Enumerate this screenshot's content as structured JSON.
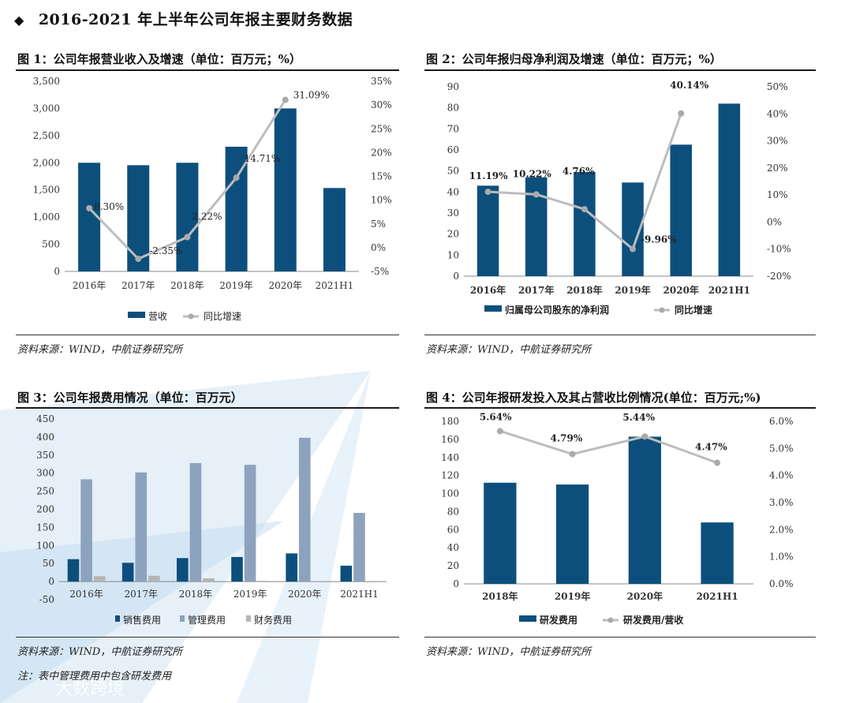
{
  "page": {
    "heading": "2016-2021 年上半年公司年报主要财务数据",
    "footnote": "注：表中管理费用中包含研发费用",
    "watermark_text": "大数跨境"
  },
  "colors": {
    "bar_dark": "#0d4f7c",
    "bar_mid": "#8da2bd",
    "bar_light": "#b5b5b5",
    "line_gray": "#bdbdbd",
    "marker_gray": "#aaaaaa",
    "watermark": "#cfe3f3"
  },
  "charts": [
    {
      "fig_title": "图 1：公司年报营业收入及增速（单位：百万元；%）",
      "source": "资料来源：WIND，中航证券研究所"
    },
    {
      "fig_title": "图 2：公司年报归母净利润及增速（单位：百万元；%）",
      "source": "资料来源：WIND，中航证券研究所"
    },
    {
      "fig_title": "图 3：公司年报费用情况（单位：百万元）",
      "source": "资料来源：WIND，中航证券研究所"
    },
    {
      "fig_title": "图 4：公司年报研发投入及其占营收比例情况(单位：百万元;%)",
      "source": "资料来源：WIND，中航证券研究所"
    }
  ],
  "chart_data": [
    {
      "type": "bar",
      "categories": [
        "2016年",
        "2017年",
        "2018年",
        "2019年",
        "2020年",
        "2021H1"
      ],
      "series": [
        {
          "name": "营收",
          "type": "bar",
          "axis": "left",
          "values": [
            2000,
            1955,
            2000,
            2295,
            3000,
            1535
          ]
        },
        {
          "name": "同比增速",
          "type": "line",
          "axis": "right",
          "values": [
            8.3,
            -2.35,
            2.22,
            14.71,
            31.09,
            null
          ],
          "labels": [
            "8.30%",
            "-2.35%",
            "2.22%",
            "14.71%",
            "31.09%",
            ""
          ]
        }
      ],
      "yleft": {
        "min": 0,
        "max": 3500,
        "ticks": [
          "0",
          "500",
          "1,000",
          "1,500",
          "2,000",
          "2,500",
          "3,000",
          "3,500"
        ]
      },
      "yright": {
        "min": -5,
        "max": 35,
        "ticks": [
          "-5%",
          "0%",
          "5%",
          "10%",
          "15%",
          "20%",
          "25%",
          "30%",
          "35%"
        ]
      },
      "legend_position": "bottom"
    },
    {
      "type": "bar",
      "categories": [
        "2016年",
        "2017年",
        "2018年",
        "2019年",
        "2020年",
        "2021H1"
      ],
      "series": [
        {
          "name": "归属母公司股东的净利润",
          "type": "bar",
          "axis": "left",
          "values": [
            43,
            47,
            49.5,
            44.5,
            62.5,
            82
          ]
        },
        {
          "name": "同比增速",
          "type": "line",
          "axis": "right",
          "values": [
            11.19,
            10.22,
            4.76,
            -9.96,
            40.14,
            null
          ],
          "labels": [
            "11.19%",
            "10.22%",
            "4.76%",
            "-9.96%",
            "40.14%",
            ""
          ]
        }
      ],
      "yleft": {
        "min": 0,
        "max": 90,
        "ticks": [
          "0",
          "10",
          "20",
          "30",
          "40",
          "50",
          "60",
          "70",
          "80",
          "90"
        ]
      },
      "yright": {
        "min": -20,
        "max": 50,
        "ticks": [
          "-20%",
          "-10%",
          "0%",
          "10%",
          "20%",
          "30%",
          "40%",
          "50%"
        ]
      },
      "legend_position": "bottom"
    },
    {
      "type": "bar",
      "categories": [
        "2016年",
        "2017年",
        "2018年",
        "2019年",
        "2020年",
        "2021H1"
      ],
      "series": [
        {
          "name": "销售费用",
          "type": "bar",
          "values": [
            62,
            52,
            65,
            68,
            78,
            44
          ]
        },
        {
          "name": "管理费用",
          "type": "bar",
          "values": [
            283,
            302,
            328,
            323,
            398,
            190
          ]
        },
        {
          "name": "财务费用",
          "type": "bar",
          "values": [
            15,
            16,
            9,
            2,
            -2,
            -2
          ]
        }
      ],
      "yleft": {
        "min": -50,
        "max": 450,
        "ticks": [
          "-50",
          "0",
          "50",
          "100",
          "150",
          "200",
          "250",
          "300",
          "350",
          "400",
          "450"
        ]
      },
      "legend_position": "bottom"
    },
    {
      "type": "bar",
      "categories": [
        "2018年",
        "2019年",
        "2020年",
        "2021H1"
      ],
      "series": [
        {
          "name": "研发费用",
          "type": "bar",
          "axis": "left",
          "values": [
            112,
            110,
            163,
            68
          ]
        },
        {
          "name": "研发费用/营收",
          "type": "line",
          "axis": "right",
          "values": [
            5.64,
            4.79,
            5.44,
            4.47
          ],
          "labels": [
            "5.64%",
            "4.79%",
            "5.44%",
            "4.47%"
          ]
        }
      ],
      "yleft": {
        "min": 0,
        "max": 180,
        "ticks": [
          "0",
          "20",
          "40",
          "60",
          "80",
          "100",
          "120",
          "140",
          "160",
          "180"
        ]
      },
      "yright": {
        "min": 0,
        "max": 6,
        "ticks": [
          "0.0%",
          "1.0%",
          "2.0%",
          "3.0%",
          "4.0%",
          "5.0%",
          "6.0%"
        ]
      },
      "legend_position": "bottom"
    }
  ]
}
